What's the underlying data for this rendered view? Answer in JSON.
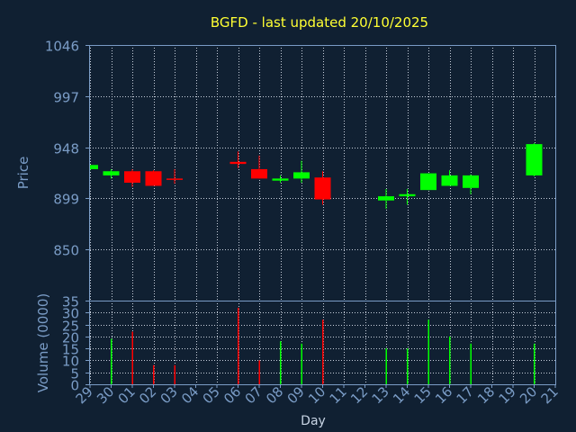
{
  "chart_data": {
    "type": "candlestick",
    "title": "BGFD - last updated 20/10/2025",
    "xlabel": "Day",
    "price_axis": {
      "label": "Price",
      "ticks": [
        850,
        899,
        948,
        997,
        1046
      ],
      "ylim": [
        801,
        1046
      ]
    },
    "volume_axis": {
      "label": "Volume (0000)",
      "ticks": [
        0,
        5,
        10,
        15,
        20,
        25,
        30,
        35
      ],
      "ylim": [
        0,
        35
      ]
    },
    "grid": true,
    "x_ticks": [
      "29",
      "30",
      "01",
      "02",
      "03",
      "04",
      "05",
      "06",
      "07",
      "08",
      "09",
      "10",
      "11",
      "12",
      "13",
      "14",
      "15",
      "16",
      "17",
      "18",
      "19",
      "20",
      "21"
    ],
    "up_color": "#00ff00",
    "down_color": "#ff0000",
    "candles": [
      {
        "day": "29",
        "open": 927,
        "high": 931,
        "low": 926,
        "close": 931
      },
      {
        "day": "30",
        "open": 921,
        "high": 927,
        "low": 918,
        "close": 925
      },
      {
        "day": "01",
        "open": 925,
        "high": 927,
        "low": 910,
        "close": 914
      },
      {
        "day": "02",
        "open": 925,
        "high": 926,
        "low": 911,
        "close": 911
      },
      {
        "day": "03",
        "open": 918,
        "high": 927,
        "low": 913,
        "close": 917
      },
      {
        "day": "06",
        "open": 934,
        "high": 944,
        "low": 928,
        "close": 932
      },
      {
        "day": "07",
        "open": 927,
        "high": 940,
        "low": 918,
        "close": 918
      },
      {
        "day": "08",
        "open": 916,
        "high": 921,
        "low": 914,
        "close": 918
      },
      {
        "day": "09",
        "open": 918,
        "high": 935,
        "low": 914,
        "close": 924
      },
      {
        "day": "10",
        "open": 919,
        "high": 925,
        "low": 893,
        "close": 898
      },
      {
        "day": "13",
        "open": 897,
        "high": 908,
        "low": 889,
        "close": 901
      },
      {
        "day": "14",
        "open": 901,
        "high": 908,
        "low": 893,
        "close": 903
      },
      {
        "day": "15",
        "open": 907,
        "high": 923,
        "low": 907,
        "close": 923
      },
      {
        "day": "16",
        "open": 911,
        "high": 926,
        "low": 911,
        "close": 921
      },
      {
        "day": "17",
        "open": 909,
        "high": 922,
        "low": 903,
        "close": 921
      },
      {
        "day": "20",
        "open": 921,
        "high": 952,
        "low": 920,
        "close": 951
      }
    ],
    "volume": [
      {
        "day": "30",
        "value": 19
      },
      {
        "day": "01",
        "value": 22
      },
      {
        "day": "02",
        "value": 8
      },
      {
        "day": "03",
        "value": 8
      },
      {
        "day": "06",
        "value": 32
      },
      {
        "day": "07",
        "value": 10
      },
      {
        "day": "08",
        "value": 18
      },
      {
        "day": "09",
        "value": 17
      },
      {
        "day": "10",
        "value": 27
      },
      {
        "day": "13",
        "value": 15
      },
      {
        "day": "14",
        "value": 15
      },
      {
        "day": "15",
        "value": 27
      },
      {
        "day": "16",
        "value": 20
      },
      {
        "day": "17",
        "value": 17
      },
      {
        "day": "20",
        "value": 17
      }
    ]
  }
}
